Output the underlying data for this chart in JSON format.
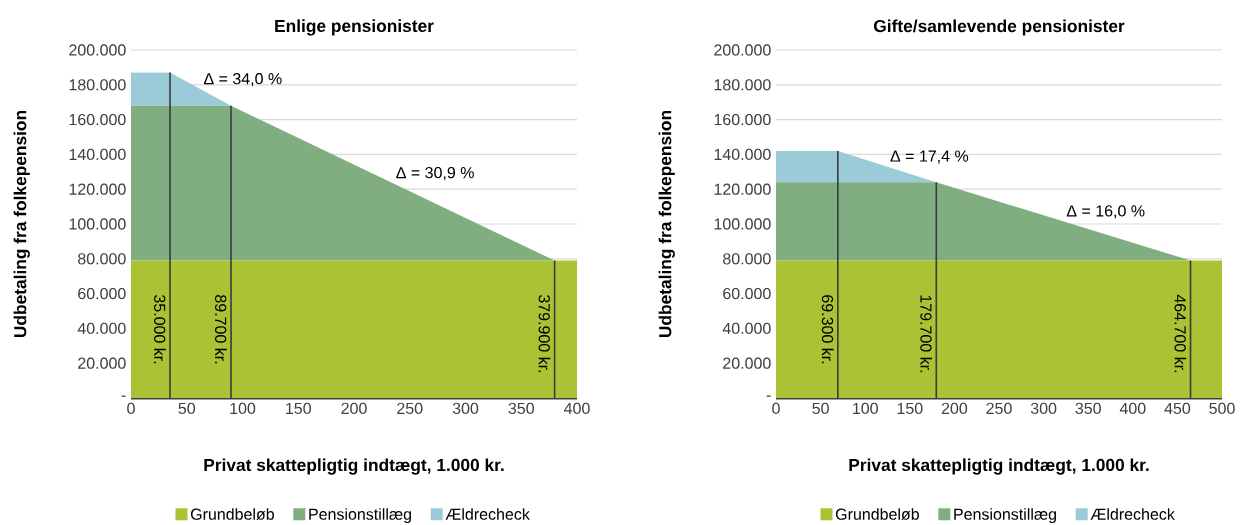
{
  "chart_data": [
    {
      "type": "area",
      "stacked": true,
      "title": "Enlige pensionister",
      "xlabel": "Privat skattepligtig indtægt, 1.000 kr.",
      "ylabel": "Udbetaling fra folkepension",
      "x": [
        0,
        35,
        89.7,
        379.9,
        400
      ],
      "series": [
        {
          "name": "Grundbeløb",
          "color": "#abc234",
          "values": [
            79000,
            79000,
            79000,
            79000,
            79000
          ]
        },
        {
          "name": "Pensionstillæg",
          "color": "#80ae80",
          "values": [
            89000,
            89000,
            89000,
            0,
            0
          ]
        },
        {
          "name": "Ældrecheck",
          "color": "#9bcbd8",
          "values": [
            19000,
            19000,
            0,
            0,
            0
          ]
        }
      ],
      "xlim": [
        0,
        400
      ],
      "xticks": [
        0,
        50,
        100,
        150,
        200,
        250,
        300,
        350,
        400
      ],
      "ylim": [
        0,
        200000
      ],
      "yticks": [
        {
          "value": 0,
          "label": "-"
        },
        {
          "value": 20000,
          "label": "20.000"
        },
        {
          "value": 40000,
          "label": "40.000"
        },
        {
          "value": 60000,
          "label": "60.000"
        },
        {
          "value": 80000,
          "label": "80.000"
        },
        {
          "value": 100000,
          "label": "100.000"
        },
        {
          "value": 120000,
          "label": "120.000"
        },
        {
          "value": 140000,
          "label": "140.000"
        },
        {
          "value": 160000,
          "label": "160.000"
        },
        {
          "value": 180000,
          "label": "180.000"
        },
        {
          "value": 200000,
          "label": "200.000"
        }
      ],
      "ref_lines": [
        {
          "axis": "x",
          "value": 35,
          "label": "35.000 kr.",
          "color": "#3a3a3a"
        },
        {
          "axis": "x",
          "value": 89.7,
          "label": "89.700 kr.",
          "color": "#3a3a3a"
        },
        {
          "axis": "x",
          "value": 379.9,
          "label": "379.900 kr.",
          "color": "#3a3a3a"
        }
      ],
      "annotations": [
        "Δ = 34,0 %",
        "Δ = 30,9 %"
      ],
      "grid": "y",
      "legend": "bottom"
    },
    {
      "type": "area",
      "stacked": true,
      "title": "Gifte/samlevende pensionister",
      "xlabel": "Privat skattepligtig indtægt, 1.000 kr.",
      "ylabel": "Udbetaling fra folkepension",
      "x": [
        0,
        69.3,
        179.7,
        464.7,
        500
      ],
      "series": [
        {
          "name": "Grundbeløb",
          "color": "#abc234",
          "values": [
            79000,
            79000,
            79000,
            79000,
            79000
          ]
        },
        {
          "name": "Pensionstillæg",
          "color": "#80ae80",
          "values": [
            45000,
            45000,
            45000,
            0,
            0
          ]
        },
        {
          "name": "Ældrecheck",
          "color": "#9bcbd8",
          "values": [
            18000,
            18000,
            0,
            0,
            0
          ]
        }
      ],
      "xlim": [
        0,
        500
      ],
      "xticks": [
        0,
        50,
        100,
        150,
        200,
        250,
        300,
        350,
        400,
        450,
        500
      ],
      "ylim": [
        0,
        200000
      ],
      "yticks": [
        {
          "value": 0,
          "label": "-"
        },
        {
          "value": 20000,
          "label": "20.000"
        },
        {
          "value": 40000,
          "label": "40.000"
        },
        {
          "value": 60000,
          "label": "60.000"
        },
        {
          "value": 80000,
          "label": "80.000"
        },
        {
          "value": 100000,
          "label": "100.000"
        },
        {
          "value": 120000,
          "label": "120.000"
        },
        {
          "value": 140000,
          "label": "140.000"
        },
        {
          "value": 160000,
          "label": "160.000"
        },
        {
          "value": 180000,
          "label": "180.000"
        },
        {
          "value": 200000,
          "label": "200.000"
        }
      ],
      "ref_lines": [
        {
          "axis": "x",
          "value": 69.3,
          "label": "69.300 kr.",
          "color": "#3a3a3a"
        },
        {
          "axis": "x",
          "value": 179.7,
          "label": "179.700 kr.",
          "color": "#3a3a3a"
        },
        {
          "axis": "x",
          "value": 464.7,
          "label": "464.700 kr.",
          "color": "#3a3a3a"
        }
      ],
      "annotations": [
        "Δ = 17,4 %",
        "Δ = 16,0 %"
      ],
      "grid": "y",
      "legend": "bottom"
    }
  ]
}
